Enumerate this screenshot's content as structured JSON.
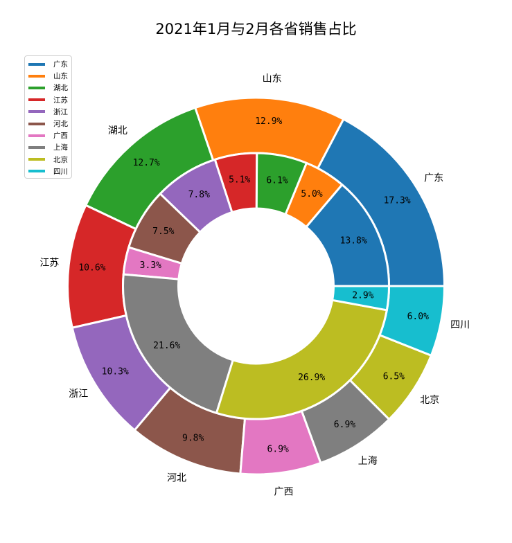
{
  "chart_data": {
    "type": "pie",
    "title": "2021年1月与2月各省销售占比",
    "categories": [
      "广东",
      "山东",
      "湖北",
      "江苏",
      "浙江",
      "河北",
      "广西",
      "上海",
      "北京",
      "四川"
    ],
    "colors": [
      "#1f77b4",
      "#ff7f0e",
      "#2ca02c",
      "#d62728",
      "#9467bd",
      "#8c564b",
      "#e377c2",
      "#7f7f7f",
      "#bcbd22",
      "#17becf"
    ],
    "series": [
      {
        "ring": "outer",
        "values": [
          17.3,
          12.9,
          12.7,
          10.6,
          10.3,
          9.8,
          6.9,
          6.9,
          6.5,
          6.0
        ]
      },
      {
        "ring": "inner",
        "values": [
          13.8,
          5.0,
          6.1,
          5.1,
          7.8,
          7.5,
          3.3,
          21.6,
          26.9,
          2.9
        ]
      }
    ],
    "start_angle_deg": 0,
    "direction": "counterclockwise",
    "legend_position": "top-left"
  }
}
